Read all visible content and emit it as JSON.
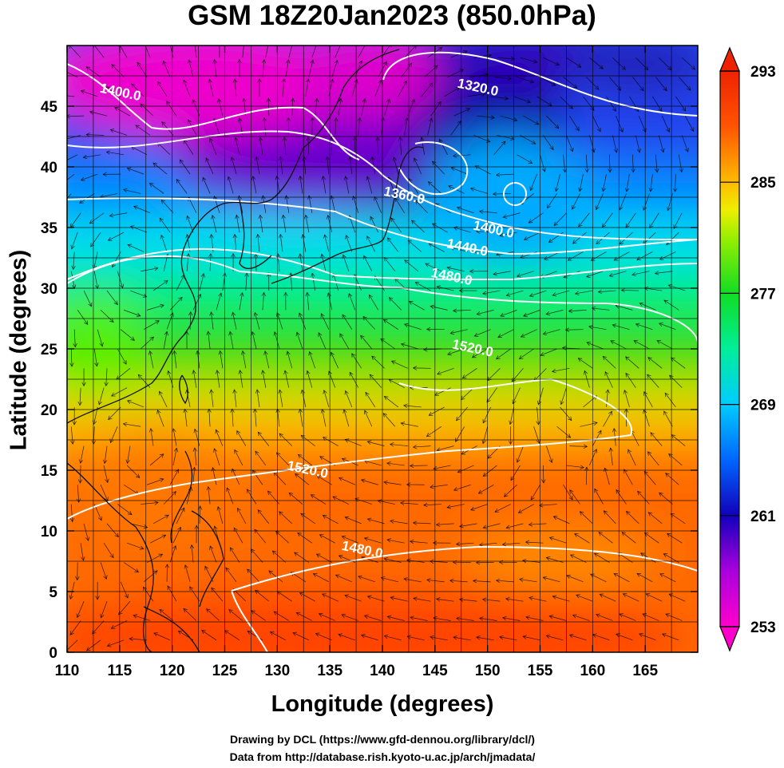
{
  "title": "GSM 18Z20Jan2023 (850.0hPa)",
  "x_axis": {
    "label": "Longitude (degrees)",
    "range": [
      110,
      170
    ],
    "ticks": [
      "110",
      "115",
      "120",
      "125",
      "130",
      "135",
      "140",
      "145",
      "150",
      "155",
      "160",
      "165"
    ]
  },
  "y_axis": {
    "label": "Latitude  (degrees)",
    "range": [
      0,
      50
    ],
    "ticks": [
      "0",
      "5",
      "10",
      "15",
      "20",
      "25",
      "30",
      "35",
      "40",
      "45"
    ]
  },
  "colorbar": {
    "range": [
      253,
      293
    ],
    "ticks": [
      "253",
      "261",
      "269",
      "277",
      "285",
      "293"
    ],
    "colors_low_to_high": [
      "#ff00cc",
      "#8800dd",
      "#0000bb",
      "#0055ff",
      "#00aaff",
      "#00eecc",
      "#00ee55",
      "#55dd00",
      "#ddee00",
      "#ffcc00",
      "#ff8800",
      "#ff4400",
      "#ee2200"
    ]
  },
  "contour_labels": [
    {
      "text": "1400.0",
      "lon": 115,
      "lat": 45.8
    },
    {
      "text": "1320.0",
      "lon": 149,
      "lat": 46.2
    },
    {
      "text": "1360.0",
      "lon": 142,
      "lat": 37.3
    },
    {
      "text": "1400.0",
      "lon": 150.5,
      "lat": 34.5
    },
    {
      "text": "1440.0",
      "lon": 148,
      "lat": 33.0
    },
    {
      "text": "1480.0",
      "lon": 146.5,
      "lat": 30.6
    },
    {
      "text": "1520.0",
      "lon": 148.5,
      "lat": 24.7
    },
    {
      "text": "1520.0",
      "lon": 132.8,
      "lat": 14.7
    },
    {
      "text": "1480.0",
      "lon": 138,
      "lat": 8.1
    }
  ],
  "credits": {
    "line1": "Drawing by DCL (https://www.gfd-dennou.org/library/dcl/)",
    "line2": "Data from http://database.rish.kyoto-u.ac.jp/arch/jmadata/"
  }
}
